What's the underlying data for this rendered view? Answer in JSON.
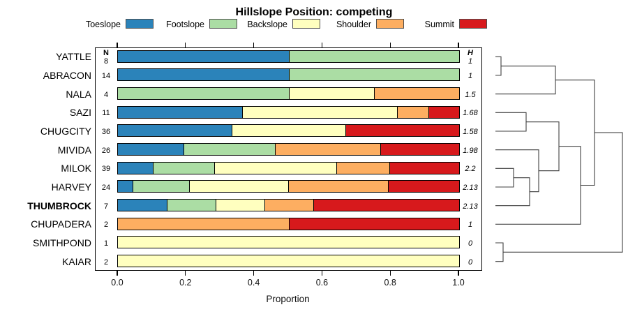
{
  "chart_data": {
    "type": "bar",
    "orientation": "horizontal-stacked",
    "title": "Hillslope Position: competing",
    "xlabel": "Proportion",
    "xlim": [
      0,
      1
    ],
    "xticks": [
      0,
      0.2,
      0.4,
      0.6,
      0.8,
      1.0
    ],
    "legend_position": "top",
    "grid": false,
    "categories": [
      "YATTLE",
      "ABRACON",
      "NALA",
      "SAZI",
      "CHUGCITY",
      "MIVIDA",
      "MILOK",
      "HARVEY",
      "THUMBROCK",
      "CHUPADERA",
      "SMITHPOND",
      "KAIAR"
    ],
    "bold_categories": [
      "THUMBROCK"
    ],
    "n_header": "N",
    "h_header": "H",
    "n_values": [
      "8",
      "14",
      "4",
      "11",
      "36",
      "26",
      "39",
      "24",
      "7",
      "2",
      "1",
      "2"
    ],
    "h_values": [
      "1",
      "1",
      "1.5",
      "1.68",
      "1.58",
      "1.98",
      "2.2",
      "2.13",
      "2.13",
      "1",
      "0",
      "0"
    ],
    "series": [
      {
        "name": "Toeslope",
        "color": "#2B83BA",
        "values": [
          0.5,
          0.5,
          0,
          0.364,
          0.333,
          0.192,
          0.103,
          0.042,
          0.143,
          0,
          0,
          0
        ]
      },
      {
        "name": "Footslope",
        "color": "#ABDDA4",
        "values": [
          0.5,
          0.5,
          0.5,
          0,
          0,
          0.269,
          0.179,
          0.167,
          0.143,
          0,
          0,
          0
        ]
      },
      {
        "name": "Backslope",
        "color": "#FFFFBF",
        "values": [
          0,
          0,
          0.25,
          0.455,
          0.333,
          0,
          0.359,
          0.291,
          0.143,
          0,
          1,
          1
        ]
      },
      {
        "name": "Shoulder",
        "color": "#FDAE61",
        "values": [
          0,
          0,
          0.25,
          0.091,
          0,
          0.308,
          0.154,
          0.292,
          0.143,
          0.5,
          0,
          0
        ]
      },
      {
        "name": "Summit",
        "color": "#D7191C",
        "values": [
          0,
          0,
          0,
          0.09,
          0.334,
          0.231,
          0.205,
          0.208,
          0.428,
          0.5,
          0,
          0
        ]
      }
    ],
    "dendrogram": {
      "leaf_order": [
        "YATTLE",
        "ABRACON",
        "NALA",
        "SAZI",
        "CHUGCITY",
        "MIVIDA",
        "MILOK",
        "HARVEY",
        "THUMBROCK",
        "CHUPADERA",
        "SMITHPOND",
        "KAIAR"
      ],
      "merges": [
        {
          "a": "L0",
          "b": "L1",
          "x": 718
        },
        {
          "a": "M0",
          "b": "L2",
          "x": 796
        },
        {
          "a": "L3",
          "b": "L4",
          "x": 754
        },
        {
          "a": "L6",
          "b": "L7",
          "x": 736
        },
        {
          "a": "M3",
          "b": "L8",
          "x": 759
        },
        {
          "a": "L5",
          "b": "M4",
          "x": 772
        },
        {
          "a": "M2",
          "b": "M5",
          "x": 801
        },
        {
          "a": "M6",
          "b": "L9",
          "x": 832
        },
        {
          "a": "M1",
          "b": "M7",
          "x": 852
        },
        {
          "a": "L10",
          "b": "L11",
          "x": 721
        },
        {
          "a": "M8",
          "b": "M9",
          "x": 892
        }
      ]
    }
  }
}
